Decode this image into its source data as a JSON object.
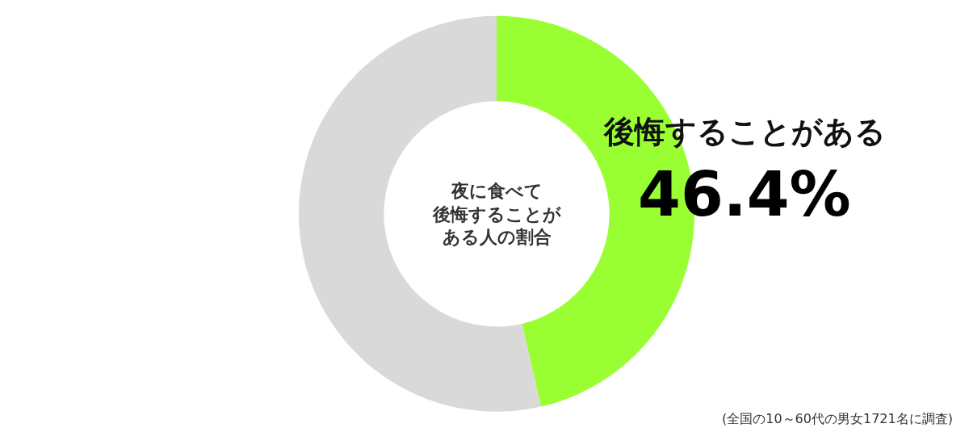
{
  "chart_data": {
    "type": "donut",
    "title": "夜に食べて後悔することがある人の割合",
    "categories": [
      "後悔することがある",
      null
    ],
    "values": [
      46.4,
      53.6
    ],
    "value_labels": [
      "46.4%",
      null
    ],
    "colors": [
      "#99ff33",
      "#d9d9d9"
    ],
    "legend": false,
    "annotations": [
      "(全国の10～60代の男女1721名に調査)"
    ]
  }
}
